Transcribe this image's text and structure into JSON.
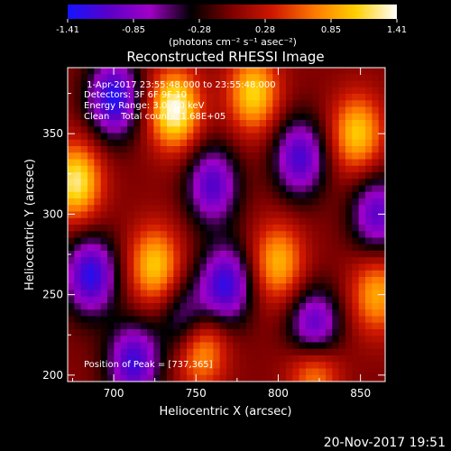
{
  "chart_data": {
    "type": "heatmap",
    "title": "Reconstructed RHESSI Image",
    "xlabel": "Heliocentric X (arcsec)",
    "ylabel": "Heliocentric Y (arcsec)",
    "xlim": [
      672,
      865
    ],
    "ylim": [
      196,
      391
    ],
    "x_ticks": [
      700,
      750,
      800,
      850
    ],
    "y_ticks": [
      200,
      250,
      300,
      350
    ],
    "grid": false,
    "colorbar": {
      "range": [
        -1.41,
        1.41
      ],
      "ticks": [
        "-1.41",
        "-0.85",
        "-0.28",
        "0.28",
        "0.85",
        "1.41"
      ],
      "label": "(photons cm⁻² s⁻¹ asec⁻²)",
      "colors": [
        "#1414ff",
        "#5a00c8",
        "#a000c8",
        "#000000",
        "#800000",
        "#d01800",
        "#ff7800",
        "#ffd000",
        "#ffffff"
      ]
    },
    "annotations": [
      " 1-Apr-2017 23:55:48.000 to 23:55:48.000",
      "Detectors: 3F 6F 9F 10",
      "Energy Range: 3.0-6.0 keV",
      "Clean    Total counts: 1.68E+05"
    ],
    "peak_label": "Position of Peak = [737,365]",
    "peak": [
      737,
      365
    ],
    "peak_value": 1.41,
    "positive_sources": [
      {
        "x": 737,
        "y": 365,
        "value": 1.41
      },
      {
        "x": 677,
        "y": 320,
        "value": 1.25
      },
      {
        "x": 725,
        "y": 268,
        "value": 1.05
      },
      {
        "x": 752,
        "y": 218,
        "value": 1.2
      },
      {
        "x": 785,
        "y": 375,
        "value": 1.1
      },
      {
        "x": 800,
        "y": 270,
        "value": 0.95
      },
      {
        "x": 822,
        "y": 205,
        "value": 1.0
      },
      {
        "x": 848,
        "y": 350,
        "value": 1.05
      },
      {
        "x": 860,
        "y": 250,
        "value": 0.9
      }
    ],
    "negative_sources": [
      {
        "x": 700,
        "y": 372,
        "value": -1.35
      },
      {
        "x": 686,
        "y": 262,
        "value": -1.3
      },
      {
        "x": 712,
        "y": 208,
        "value": -1.2
      },
      {
        "x": 760,
        "y": 318,
        "value": -1.1
      },
      {
        "x": 768,
        "y": 256,
        "value": -1.25
      },
      {
        "x": 813,
        "y": 335,
        "value": -1.15
      },
      {
        "x": 822,
        "y": 228,
        "value": -1.3
      },
      {
        "x": 860,
        "y": 300,
        "value": -1.05
      },
      {
        "x": 745,
        "y": 232,
        "value": -1.0
      }
    ]
  },
  "footer": {
    "timestamp": "20-Nov-2017 19:51"
  }
}
